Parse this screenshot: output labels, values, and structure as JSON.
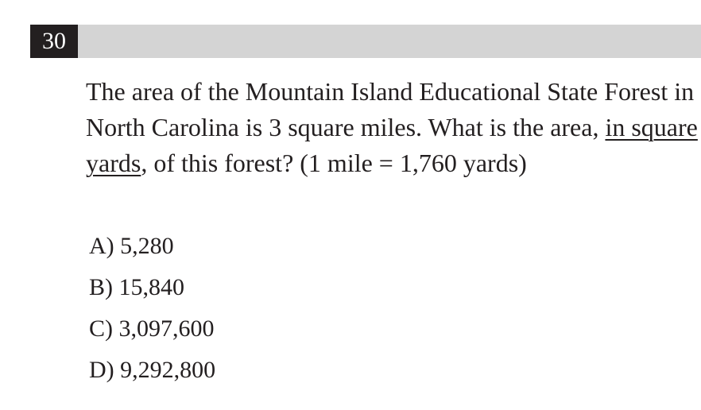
{
  "question": {
    "number": "30",
    "text_before": "The area of the Mountain Island Educational State Forest in North Carolina is 3 square miles. What is the area, ",
    "text_underlined": "in square yards",
    "text_after": ", of this forest? (1 mile = 1,760 yards)"
  },
  "choices": [
    {
      "letter": "A)",
      "value": "5,280"
    },
    {
      "letter": "B)",
      "value": "15,840"
    },
    {
      "letter": "C)",
      "value": "3,097,600"
    },
    {
      "letter": "D)",
      "value": "9,292,800"
    }
  ],
  "colors": {
    "header_bar": "#d4d4d4",
    "number_box": "#231f20",
    "text": "#231f20"
  }
}
